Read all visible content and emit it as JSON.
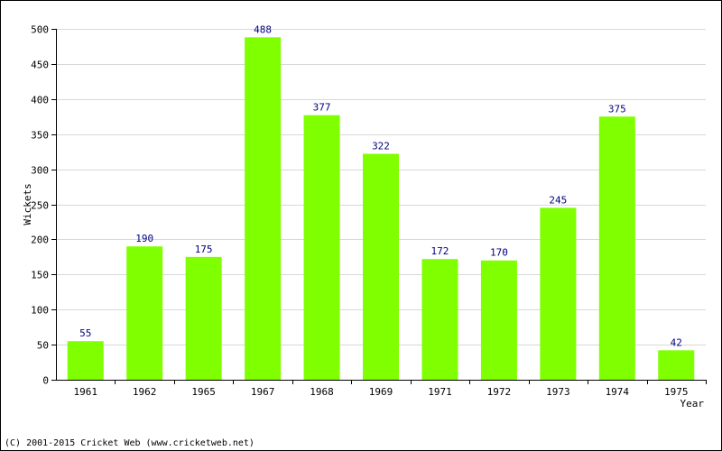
{
  "chart_data": {
    "type": "bar",
    "categories": [
      "1961",
      "1962",
      "1965",
      "1967",
      "1968",
      "1969",
      "1971",
      "1972",
      "1973",
      "1974",
      "1975"
    ],
    "values": [
      55,
      190,
      175,
      488,
      377,
      322,
      172,
      170,
      245,
      375,
      42
    ],
    "xlabel": "Year",
    "ylabel": "Wickets",
    "ylim": [
      0,
      500
    ],
    "yticks": [
      0,
      50,
      100,
      150,
      200,
      250,
      300,
      350,
      400,
      450,
      500
    ],
    "grid": true,
    "bar_color": "#80ff00",
    "value_label_color": "#000080",
    "grid_color": "#d8d8d8"
  },
  "footer": {
    "copyright": "(C) 2001-2015 Cricket Web (www.cricketweb.net)"
  }
}
